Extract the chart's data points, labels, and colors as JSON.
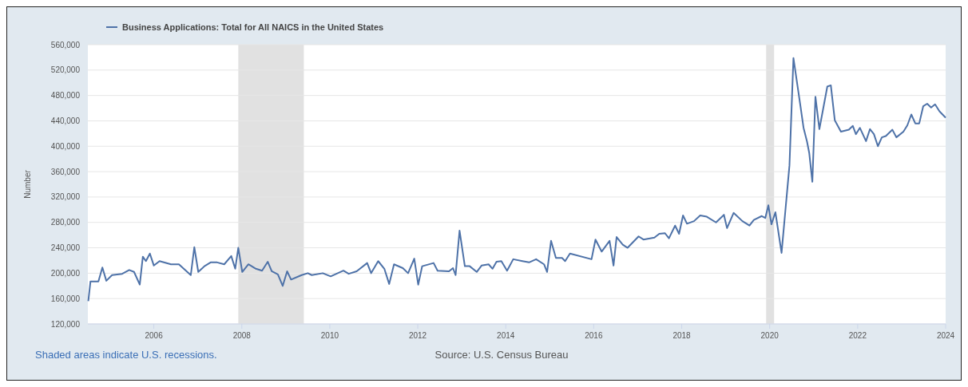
{
  "chart_data": {
    "type": "line",
    "ylabel": "Number",
    "legend": "top left",
    "grid": "y",
    "line_style": "solid",
    "marker": "none",
    "annotations": [
      "Shaded areas indicate U.S. recessions.",
      "Source: U.S. Census Bureau"
    ],
    "xlim": [
      2004.5,
      2024.0
    ],
    "xticks": [
      2006,
      2008,
      2010,
      2012,
      2014,
      2016,
      2018,
      2020,
      2022,
      2024
    ],
    "ylim": [
      120000,
      560000
    ],
    "yticks": [
      {
        "value": 120000,
        "label": "120,000"
      },
      {
        "value": 160000,
        "label": "160,000"
      },
      {
        "value": 200000,
        "label": "200,000"
      },
      {
        "value": 240000,
        "label": "240,000"
      },
      {
        "value": 280000,
        "label": "280,000"
      },
      {
        "value": 320000,
        "label": "320,000"
      },
      {
        "value": 360000,
        "label": "360,000"
      },
      {
        "value": 400000,
        "label": "400,000"
      },
      {
        "value": 440000,
        "label": "440,000"
      },
      {
        "value": 480000,
        "label": "480,000"
      },
      {
        "value": 520000,
        "label": "520,000"
      },
      {
        "value": 560000,
        "label": "560,000"
      }
    ],
    "bands": [
      {
        "axis": "x",
        "from": 2007.92,
        "to": 2009.41,
        "color": "#e1e1e1"
      },
      {
        "axis": "x",
        "from": 2019.92,
        "to": 2020.1,
        "color": "#e1e1e1"
      }
    ],
    "x": [
      2004.51,
      2004.56,
      2004.74,
      2004.83,
      2004.92,
      2005.05,
      2005.28,
      2005.44,
      2005.55,
      2005.68,
      2005.75,
      2005.82,
      2005.91,
      2006.0,
      2006.13,
      2006.39,
      2006.57,
      2006.84,
      2006.92,
      2007.01,
      2007.15,
      2007.29,
      2007.44,
      2007.6,
      2007.76,
      2007.85,
      2007.92,
      2008.01,
      2008.15,
      2008.32,
      2008.46,
      2008.59,
      2008.68,
      2008.82,
      2008.93,
      2009.03,
      2009.12,
      2009.36,
      2009.5,
      2009.59,
      2009.84,
      2010.02,
      2010.31,
      2010.43,
      2010.61,
      2010.85,
      2010.94,
      2011.1,
      2011.24,
      2011.35,
      2011.46,
      2011.66,
      2011.78,
      2011.92,
      2012.01,
      2012.1,
      2012.36,
      2012.45,
      2012.71,
      2012.8,
      2012.86,
      2012.95,
      2013.07,
      2013.18,
      2013.34,
      2013.45,
      2013.61,
      2013.7,
      2013.79,
      2013.9,
      2014.03,
      2014.17,
      2014.38,
      2014.53,
      2014.69,
      2014.87,
      2014.94,
      2015.03,
      2015.14,
      2015.28,
      2015.35,
      2015.46,
      2015.95,
      2016.04,
      2016.18,
      2016.36,
      2016.45,
      2016.52,
      2016.66,
      2016.77,
      2017.02,
      2017.13,
      2017.38,
      2017.49,
      2017.62,
      2017.71,
      2017.85,
      2017.94,
      2018.03,
      2018.12,
      2018.28,
      2018.42,
      2018.57,
      2018.78,
      2018.96,
      2019.03,
      2019.18,
      2019.38,
      2019.54,
      2019.64,
      2019.82,
      2019.9,
      2019.97,
      2020.04,
      2020.13,
      2020.27,
      2020.45,
      2020.54,
      2020.7,
      2020.77,
      2020.85,
      2020.9,
      2020.97,
      2021.04,
      2021.13,
      2021.31,
      2021.39,
      2021.48,
      2021.62,
      2021.8,
      2021.89,
      2021.96,
      2022.05,
      2022.19,
      2022.28,
      2022.37,
      2022.46,
      2022.55,
      2022.64,
      2022.79,
      2022.88,
      2023.04,
      2023.13,
      2023.22,
      2023.31,
      2023.4,
      2023.49,
      2023.58,
      2023.67,
      2023.76,
      2023.86,
      2024.0
    ],
    "series": [
      {
        "name": "Business Applications: Total for All NAICS in the United States",
        "color": "#4e72a8",
        "values": [
          156000,
          187000,
          187000,
          209000,
          188000,
          197000,
          199000,
          205000,
          202000,
          182000,
          226000,
          219000,
          231000,
          212000,
          219000,
          214000,
          214000,
          197000,
          241000,
          202000,
          211000,
          217000,
          217000,
          214000,
          227000,
          207000,
          240000,
          202000,
          214000,
          207000,
          204000,
          218000,
          203000,
          198000,
          180000,
          203000,
          190000,
          197000,
          200000,
          197000,
          200000,
          195000,
          204000,
          199000,
          203000,
          216000,
          200000,
          219000,
          207000,
          183000,
          214000,
          208000,
          200000,
          223000,
          182000,
          211000,
          216000,
          204000,
          203000,
          208000,
          197000,
          267000,
          211000,
          211000,
          202000,
          212000,
          214000,
          207000,
          218000,
          219000,
          204000,
          222000,
          219000,
          217000,
          222000,
          214000,
          202000,
          251000,
          224000,
          224000,
          219000,
          231000,
          222000,
          253000,
          234000,
          251000,
          212000,
          257000,
          245000,
          240000,
          258000,
          253000,
          256000,
          262000,
          263000,
          255000,
          275000,
          262000,
          291000,
          278000,
          282000,
          291000,
          289000,
          280000,
          292000,
          271000,
          295000,
          282000,
          275000,
          284000,
          290000,
          287000,
          307000,
          277000,
          296000,
          232000,
          370000,
          539000,
          463000,
          429000,
          407000,
          389000,
          344000,
          478000,
          427000,
          494000,
          496000,
          441000,
          423000,
          426000,
          432000,
          419000,
          429000,
          408000,
          427000,
          419000,
          400000,
          414000,
          416000,
          426000,
          414000,
          423000,
          433000,
          450000,
          436000,
          436000,
          463000,
          467000,
          461000,
          466000,
          455000,
          445000
        ]
      }
    ]
  }
}
